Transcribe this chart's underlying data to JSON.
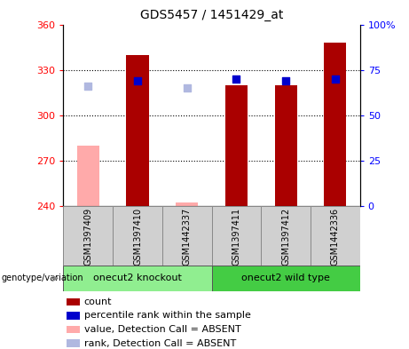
{
  "title": "GDS5457 / 1451429_at",
  "samples": [
    "GSM1397409",
    "GSM1397410",
    "GSM1442337",
    "GSM1397411",
    "GSM1397412",
    "GSM1442336"
  ],
  "count_values": [
    null,
    340,
    null,
    320,
    320,
    348
  ],
  "count_absent_values": [
    280,
    null,
    242,
    null,
    null,
    null
  ],
  "rank_values": [
    null,
    69,
    null,
    70,
    69,
    70
  ],
  "rank_absent_values": [
    66,
    null,
    65,
    null,
    null,
    null
  ],
  "ylim_left": [
    240,
    360
  ],
  "ylim_right": [
    0,
    100
  ],
  "yticks_left": [
    240,
    270,
    300,
    330,
    360
  ],
  "yticks_right": [
    0,
    25,
    50,
    75,
    100
  ],
  "group1_label": "onecut2 knockout",
  "group2_label": "onecut2 wild type",
  "group1_indices": [
    0,
    1,
    2
  ],
  "group2_indices": [
    3,
    4,
    5
  ],
  "bar_color_present": "#aa0000",
  "bar_color_absent": "#ffaaaa",
  "dot_color_present": "#0000cc",
  "dot_color_absent": "#b0b8e0",
  "group1_bg": "#90ee90",
  "group2_bg": "#44cc44",
  "sample_bg": "#d0d0d0",
  "legend_items": [
    {
      "color": "#aa0000",
      "label": "count"
    },
    {
      "color": "#0000cc",
      "label": "percentile rank within the sample"
    },
    {
      "color": "#ffaaaa",
      "label": "value, Detection Call = ABSENT"
    },
    {
      "color": "#b0b8e0",
      "label": "rank, Detection Call = ABSENT"
    }
  ],
  "xlabel": "genotype/variation",
  "bar_width": 0.45,
  "dot_size": 28,
  "title_fontsize": 10,
  "tick_fontsize": 8,
  "legend_fontsize": 8,
  "sample_fontsize": 7,
  "group_fontsize": 8
}
